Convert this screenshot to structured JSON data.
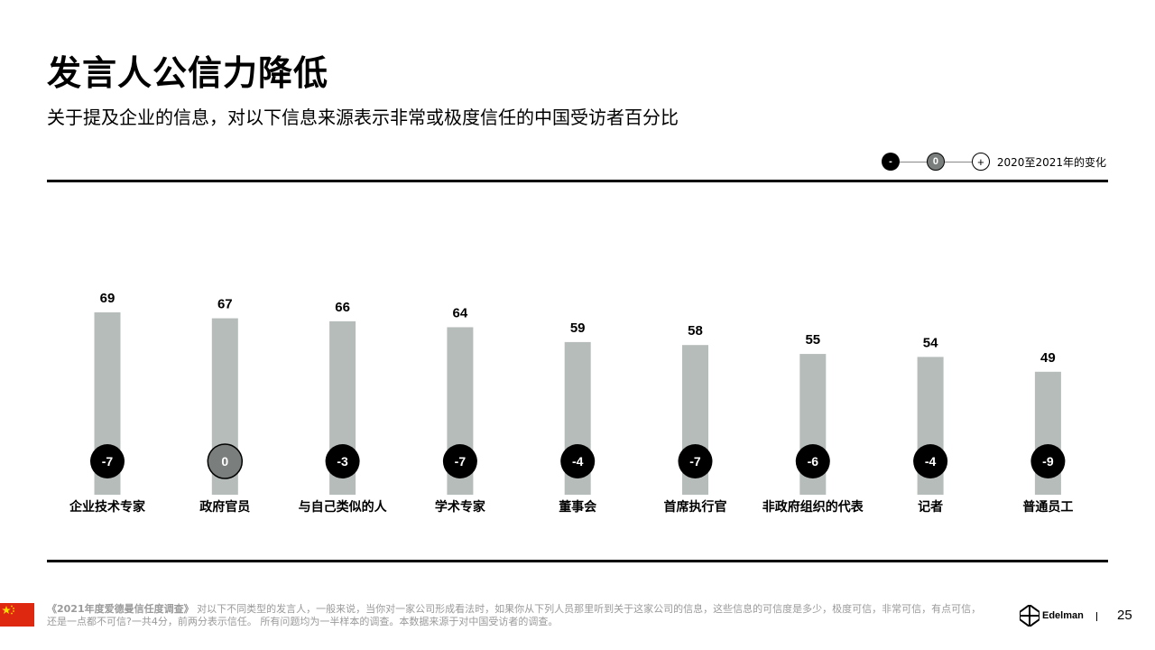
{
  "title": "发言人公信力降低",
  "subtitle": "关于提及企业的信息，对以下信息来源表示非常或极度信任的中国受访者百分比",
  "legend": {
    "minus": "-",
    "zero": "0",
    "plus": "+",
    "label": "2020至2021年的变化"
  },
  "colors": {
    "bar": "#b6bcb9",
    "negative_circle": "#000000",
    "zero_circle": "#7a7f7d",
    "rule": "#000000",
    "flag_red": "#de2910",
    "flag_star": "#ffde00"
  },
  "chart_data": {
    "type": "bar",
    "categories": [
      "企业技术专家",
      "政府官员",
      "与自己类似的人",
      "学术专家",
      "董事会",
      "首席执行官",
      "非政府组织的代表",
      "记者",
      "普通员工"
    ],
    "values": [
      69,
      67,
      66,
      64,
      59,
      58,
      55,
      54,
      49
    ],
    "changes": [
      "-7",
      "0",
      "-3",
      "-7",
      "-4",
      "-7",
      "-6",
      "-4",
      "-9"
    ],
    "ylim": [
      0,
      100
    ]
  },
  "footer": {
    "survey_name": "《2021年度爱德曼信任度调查》",
    "note": " 对以下不同类型的发言人，一般来说，当你对一家公司形成看法时，如果你从下列人员那里听到关于这家公司的信息，这些信息的可信度是多少，极度可信，非常可信，有点可信，还是一点都不可信?一共4分，前两分表示信任。 所有问题均为一半样本的调查。本数据来源于对中国受访者的调查。",
    "logo_text": "Edelman",
    "page_number": "25"
  }
}
